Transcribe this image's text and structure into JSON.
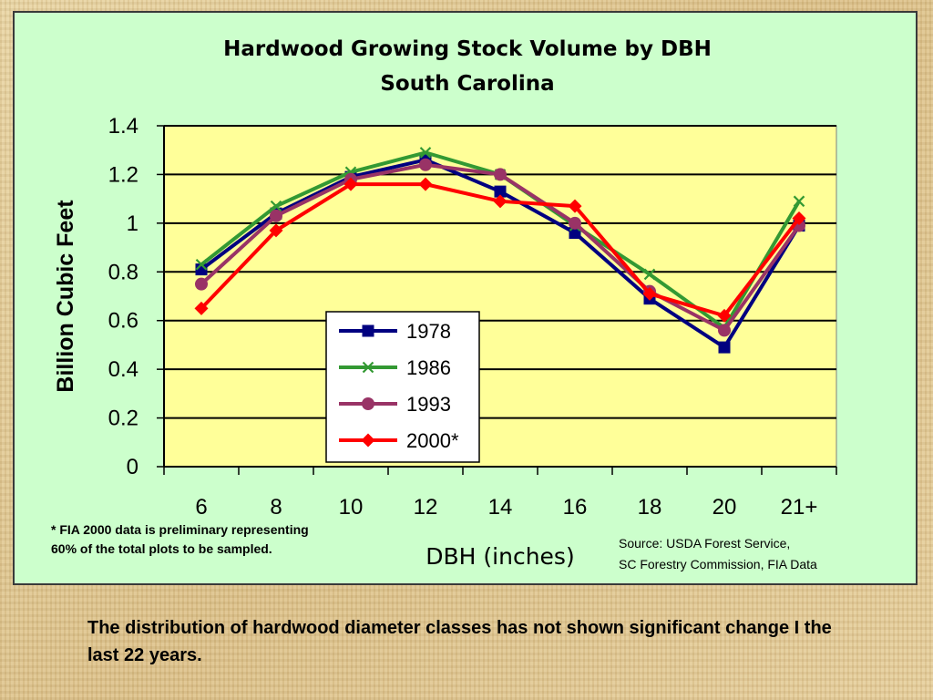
{
  "chart_data": {
    "type": "line",
    "title": "Hardwood Growing Stock Volume by DBH",
    "subtitle": "South Carolina",
    "xlabel": "DBH (inches)",
    "ylabel": "Billion Cubic Feet",
    "categories": [
      "6",
      "8",
      "10",
      "12",
      "14",
      "16",
      "18",
      "20",
      "21+"
    ],
    "ylim": [
      0,
      1.4
    ],
    "yticks": [
      "0",
      "0.2",
      "0.4",
      "0.6",
      "0.8",
      "1",
      "1.2",
      "1.4"
    ],
    "grid": true,
    "legend_position": "center-left",
    "plot_background": "#ffff99",
    "series": [
      {
        "name": "1978",
        "color": "#000080",
        "marker": "square",
        "values": [
          0.81,
          1.04,
          1.19,
          1.26,
          1.13,
          0.96,
          0.69,
          0.49,
          0.99
        ]
      },
      {
        "name": "1986",
        "color": "#339933",
        "marker": "x",
        "values": [
          0.83,
          1.07,
          1.21,
          1.29,
          1.2,
          0.99,
          0.79,
          0.57,
          1.09
        ]
      },
      {
        "name": "1993",
        "color": "#993366",
        "marker": "circle",
        "values": [
          0.75,
          1.03,
          1.18,
          1.24,
          1.2,
          1.0,
          0.72,
          0.56,
          0.99
        ]
      },
      {
        "name": "2000*",
        "color": "#ff0000",
        "marker": "diamond",
        "values": [
          0.65,
          0.97,
          1.16,
          1.16,
          1.09,
          1.07,
          0.71,
          0.62,
          1.02
        ]
      }
    ],
    "footnote": [
      "*  FIA 2000 data is preliminary representing",
      "60% of the total  plots to be sampled."
    ],
    "source": [
      "Source: USDA Forest Service,",
      "SC Forestry Commission, FIA Data"
    ]
  },
  "caption": "The distribution of hardwood diameter classes has not shown significant change I the last 22 years.",
  "colors": {
    "panel_background": "#ccffcc",
    "page_background": "#e8d3a3"
  }
}
